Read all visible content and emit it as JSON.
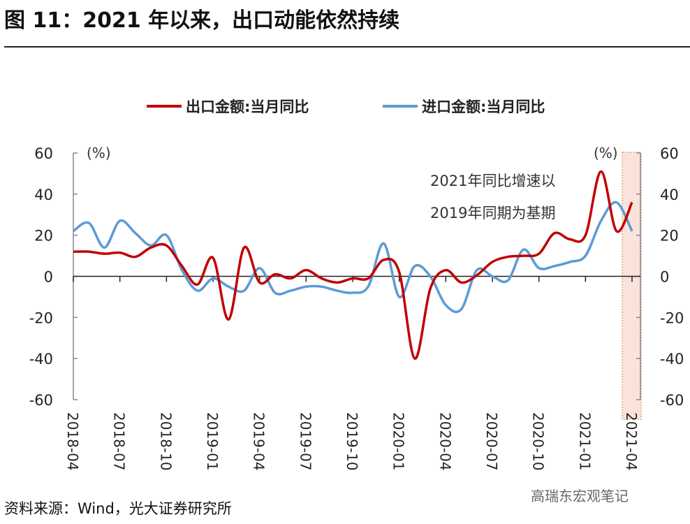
{
  "title": "图 11：2021 年以来，出口动能依然持续",
  "source": "资料来源：Wind，光大证券研究所",
  "watermark": "高瑞东宏观笔记",
  "chart_data": {
    "type": "line",
    "unit_left": "(%)",
    "unit_right": "(%)",
    "ylim": [
      -60,
      60
    ],
    "yticks": [
      "60",
      "40",
      "20",
      "0",
      "-20",
      "-40",
      "-60"
    ],
    "ytick_values": [
      60,
      40,
      20,
      0,
      -20,
      -40,
      -60
    ],
    "xticks": [
      "2018-04",
      "2018-07",
      "2018-10",
      "2019-01",
      "2019-04",
      "2019-07",
      "2019-10",
      "2020-01",
      "2020-04",
      "2020-07",
      "2020-10",
      "2021-01",
      "2021-04"
    ],
    "annotation": [
      "2021年同比增速以",
      "2019年同期为基期"
    ],
    "highlight": "2021-04",
    "legend_position": "top",
    "series": [
      {
        "name": "出口金额:当月同比",
        "color": "#c00000",
        "values": [
          12,
          12,
          11,
          11.5,
          9.5,
          14,
          15,
          5,
          -4,
          9,
          -21,
          14,
          -3,
          1,
          -1,
          3,
          -1,
          -3,
          -1,
          -1,
          8,
          2,
          -40,
          -6,
          3,
          -3,
          0.5,
          7,
          9.5,
          10,
          11,
          21,
          18,
          20,
          51,
          22,
          36
        ]
      },
      {
        "name": "进口金额:当月同比",
        "color": "#5b9bd5",
        "values": [
          22,
          26,
          14,
          27,
          21,
          15,
          20,
          3,
          -7,
          -1,
          -5,
          -7,
          4,
          -8,
          -7,
          -5,
          -5,
          -7,
          -8,
          -5,
          16,
          -10,
          5,
          0,
          -14,
          -16,
          3,
          0,
          -2,
          13,
          4,
          5,
          7,
          10,
          27,
          36,
          22
        ]
      }
    ]
  }
}
